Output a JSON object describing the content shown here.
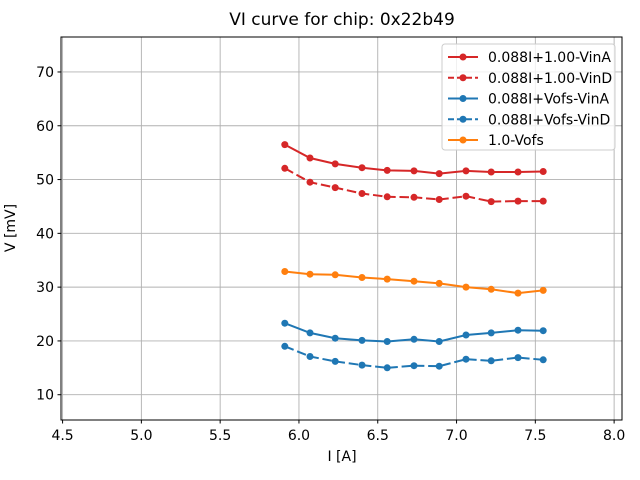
{
  "chart_data": {
    "type": "line",
    "title": "VI curve for chip: 0x22b49",
    "xlabel": "I [A]",
    "ylabel": "V [mV]",
    "xlim": [
      4.49,
      8.05
    ],
    "ylim": [
      5.3,
      76.5
    ],
    "xticks": [
      4.5,
      5.0,
      5.5,
      6.0,
      6.5,
      7.0,
      7.5,
      8.0
    ],
    "xtick_labels": [
      "4.5",
      "5.0",
      "5.5",
      "6.0",
      "6.5",
      "7.0",
      "7.5",
      "8.0"
    ],
    "yticks": [
      10,
      20,
      30,
      40,
      50,
      60,
      70
    ],
    "ytick_labels": [
      "10",
      "20",
      "30",
      "40",
      "50",
      "60",
      "70"
    ],
    "grid": true,
    "grid_color": "#b0b0b0",
    "background": "#ffffff",
    "legend_position": "upper right",
    "x": [
      5.91,
      6.07,
      6.23,
      6.4,
      6.56,
      6.73,
      6.89,
      7.06,
      7.22,
      7.39,
      7.55
    ],
    "series": [
      {
        "name": "0.088I+1.00-VinA",
        "color": "#d62728",
        "style": "solid",
        "marker": "circle",
        "values": [
          56.5,
          54.0,
          52.9,
          52.2,
          51.7,
          51.6,
          51.1,
          51.6,
          51.4,
          51.4,
          51.5
        ]
      },
      {
        "name": "0.088I+1.00-VinD",
        "color": "#d62728",
        "style": "dashed",
        "marker": "circle",
        "values": [
          52.1,
          49.5,
          48.5,
          47.4,
          46.8,
          46.7,
          46.3,
          46.9,
          45.9,
          46.0,
          46.0
        ]
      },
      {
        "name": "0.088I+Vofs-VinA",
        "color": "#1f77b4",
        "style": "solid",
        "marker": "circle",
        "values": [
          23.3,
          21.5,
          20.5,
          20.1,
          19.9,
          20.3,
          19.9,
          21.1,
          21.5,
          22.0,
          21.9
        ]
      },
      {
        "name": "0.088I+Vofs-VinD",
        "color": "#1f77b4",
        "style": "dashed",
        "marker": "circle",
        "values": [
          19.0,
          17.1,
          16.2,
          15.5,
          15.0,
          15.4,
          15.3,
          16.6,
          16.3,
          16.9,
          16.5
        ]
      },
      {
        "name": "1.0-Vofs",
        "color": "#ff7f0e",
        "style": "solid",
        "marker": "circle",
        "values": [
          32.9,
          32.4,
          32.3,
          31.8,
          31.5,
          31.1,
          30.7,
          30.0,
          29.6,
          28.9,
          29.4
        ]
      }
    ]
  }
}
